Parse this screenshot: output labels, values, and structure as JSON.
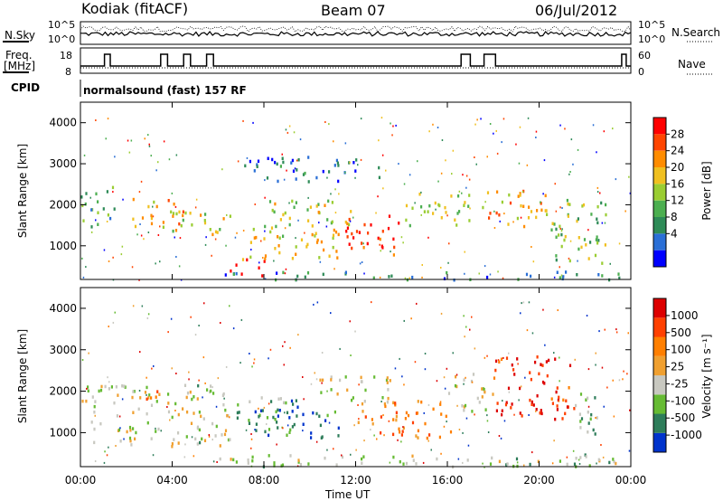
{
  "header": {
    "radar": "Kodiak (fitACF)",
    "beam": "Beam 07",
    "date": "06/Jul/2012"
  },
  "top_panels": {
    "nsky_label": "N.Sky",
    "nsky_ticks": [
      "10^5",
      "10^0"
    ],
    "nsearch_label": "N.Search",
    "nsearch_ticks": [
      "10^5",
      "10^0"
    ],
    "freq_label_line1": "Freq.",
    "freq_label_line2": "[MHz]",
    "freq_ticks": [
      "18",
      "8"
    ],
    "nave_label": "Nave",
    "nave_ticks": [
      "60",
      "0"
    ],
    "cpid_label": "CPID",
    "cpid_value": "normalsound (fast) 157 RF"
  },
  "chart_data": [
    {
      "type": "heatmap",
      "name": "power",
      "ylabel": "Slant Range [km]",
      "yticks": [
        "4000",
        "3000",
        "2000",
        "1000"
      ],
      "ylim": [
        180,
        4500
      ],
      "colorbar_label": "Power [dB]",
      "colorbar_ticks": [
        "28",
        "24",
        "20",
        "16",
        "12",
        "8",
        "4"
      ],
      "colors": [
        "#0000ff",
        "#2a6fd6",
        "#2e8b57",
        "#4caf50",
        "#9acd32",
        "#f0c020",
        "#ff8c00",
        "#ff4500",
        "#ff0000"
      ],
      "bands": [
        {
          "t0": 0.0,
          "t1": 1.5,
          "r0": 1400,
          "r1": 2500,
          "level": 0.35
        },
        {
          "t0": 2.2,
          "t1": 4.5,
          "r0": 1400,
          "r1": 2200,
          "level": 0.7
        },
        {
          "t0": 3.5,
          "t1": 6.5,
          "r0": 1300,
          "r1": 1900,
          "level": 0.55
        },
        {
          "t0": 6.5,
          "t1": 8.0,
          "r0": 300,
          "r1": 700,
          "level": 0.95
        },
        {
          "t0": 7.0,
          "t1": 11.5,
          "r0": 700,
          "r1": 1500,
          "level": 0.6
        },
        {
          "t0": 8.0,
          "t1": 12.0,
          "r0": 1500,
          "r1": 2200,
          "level": 0.55
        },
        {
          "t0": 11.5,
          "t1": 14.0,
          "r0": 800,
          "r1": 1800,
          "level": 0.9
        },
        {
          "t0": 14.0,
          "t1": 17.0,
          "r0": 1500,
          "r1": 2300,
          "level": 0.5
        },
        {
          "t0": 17.5,
          "t1": 20.5,
          "r0": 1500,
          "r1": 2400,
          "level": 0.7
        },
        {
          "t0": 20.5,
          "t1": 23.0,
          "r0": 600,
          "r1": 2200,
          "level": 0.45
        },
        {
          "t0": 6.0,
          "t1": 24.0,
          "r0": 200,
          "r1": 400,
          "level": 0.25
        },
        {
          "t0": 7.0,
          "t1": 13.0,
          "r0": 2600,
          "r1": 3200,
          "level": 0.2
        }
      ]
    },
    {
      "type": "heatmap",
      "name": "velocity",
      "ylabel": "Slant Range [km]",
      "yticks": [
        "4000",
        "3000",
        "2000",
        "1000"
      ],
      "ylim": [
        180,
        4500
      ],
      "colorbar_label": "Velocity [m s⁻¹]",
      "colorbar_ticks": [
        "1000",
        "500",
        "100",
        "25",
        "-25",
        "-100",
        "-500",
        "-1000"
      ],
      "colors": [
        "#0033cc",
        "#2e7d5a",
        "#66bb33",
        "#c8c8c0",
        "#f0a030",
        "#ff7f00",
        "#ff4000",
        "#dd0000"
      ],
      "bands": [
        {
          "t0": 0.0,
          "t1": 6.5,
          "r0": 700,
          "r1": 2200,
          "level": 0.42
        },
        {
          "t0": 2.2,
          "t1": 3.5,
          "r0": 1700,
          "r1": 2100,
          "level": 0.7
        },
        {
          "t0": 6.5,
          "t1": 9.5,
          "r0": 900,
          "r1": 1900,
          "level": 0.25
        },
        {
          "t0": 8.0,
          "t1": 11.5,
          "r0": 900,
          "r1": 1600,
          "level": 0.15
        },
        {
          "t0": 10.0,
          "t1": 13.5,
          "r0": 1700,
          "r1": 2400,
          "level": 0.45
        },
        {
          "t0": 12.0,
          "t1": 16.2,
          "r0": 900,
          "r1": 1800,
          "level": 0.7
        },
        {
          "t0": 16.0,
          "t1": 18.0,
          "r0": 1500,
          "r1": 2500,
          "level": 0.45
        },
        {
          "t0": 18.0,
          "t1": 21.5,
          "r0": 1300,
          "r1": 2900,
          "level": 0.9
        },
        {
          "t0": 21.5,
          "t1": 23.0,
          "r0": 1000,
          "r1": 2000,
          "level": 0.3
        },
        {
          "t0": 6.0,
          "t1": 24.0,
          "r0": 200,
          "r1": 500,
          "level": 0.35
        }
      ]
    }
  ],
  "xaxis": {
    "ticks": [
      "00:00",
      "04:00",
      "08:00",
      "12:00",
      "16:00",
      "20:00",
      "00:00"
    ],
    "label": "Time UT"
  }
}
